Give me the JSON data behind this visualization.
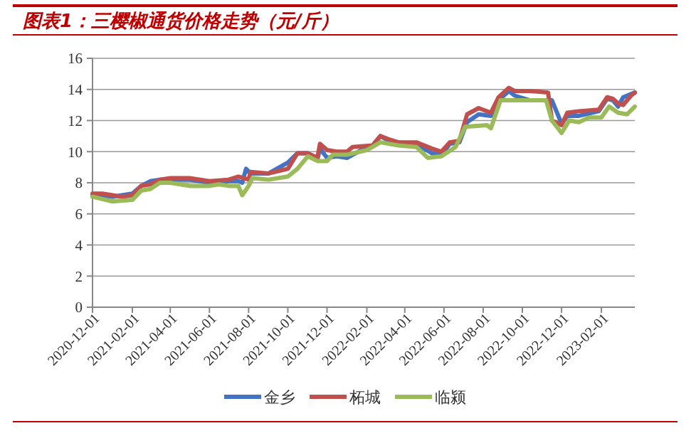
{
  "chart_data": {
    "type": "line",
    "title": "图表1：三樱椒通货价格走势（元/斤）",
    "xlim": [
      "2020-12-01",
      "2023-03-25"
    ],
    "xticks": [
      "2020-12-01",
      "2021-02-01",
      "2021-04-01",
      "2021-06-01",
      "2021-08-01",
      "2021-10-01",
      "2021-12-01",
      "2022-02-01",
      "2022-04-01",
      "2022-06-01",
      "2022-08-01",
      "2022-10-01",
      "2022-12-01",
      "2023-02-01"
    ],
    "ylim": [
      0,
      16
    ],
    "yticks": [
      0,
      2,
      4,
      6,
      8,
      10,
      12,
      14,
      16
    ],
    "grid": "y",
    "legend": "bottom",
    "marker": "none",
    "line_style": "solid",
    "series": [
      {
        "name": "金乡",
        "color": "#4472c4",
        "x": [
          "2020-12-01",
          "2020-12-16",
          "2021-01-01",
          "2021-01-16",
          "2021-02-01",
          "2021-02-15",
          "2021-03-01",
          "2021-03-16",
          "2021-04-01",
          "2021-05-01",
          "2021-06-01",
          "2021-07-01",
          "2021-07-16",
          "2021-07-22",
          "2021-07-28",
          "2021-08-04",
          "2021-09-01",
          "2021-10-01",
          "2021-10-16",
          "2021-11-01",
          "2021-11-16",
          "2021-11-20",
          "2021-12-01",
          "2021-12-16",
          "2022-01-01",
          "2022-01-10",
          "2022-02-01",
          "2022-02-10",
          "2022-02-22",
          "2022-03-07",
          "2022-03-22",
          "2022-04-19",
          "2022-05-13",
          "2022-05-28",
          "2022-06-10",
          "2022-06-25",
          "2022-07-07",
          "2022-07-25",
          "2022-08-13",
          "2022-08-25",
          "2022-09-10",
          "2022-09-19",
          "2022-10-13",
          "2022-11-07",
          "2022-11-16",
          "2022-12-01",
          "2022-12-10",
          "2022-12-28",
          "2023-01-28",
          "2023-02-10",
          "2023-02-19",
          "2023-02-27",
          "2023-03-07",
          "2023-03-19",
          "2023-03-25"
        ],
        "values": [
          7.2,
          7.2,
          7.1,
          7.2,
          7.3,
          7.8,
          8.1,
          8.2,
          8.2,
          8.2,
          8.0,
          8.1,
          8.1,
          8.0,
          8.9,
          8.6,
          8.6,
          9.3,
          9.9,
          9.9,
          9.5,
          10.2,
          9.6,
          9.7,
          9.6,
          9.8,
          10.3,
          10.4,
          11.0,
          10.7,
          10.6,
          10.5,
          9.9,
          9.8,
          10.5,
          10.6,
          11.9,
          12.4,
          12.3,
          13.3,
          13.9,
          13.6,
          13.3,
          13.3,
          13.3,
          11.8,
          12.3,
          12.3,
          12.6,
          13.4,
          13.3,
          12.9,
          13.5,
          13.7,
          13.8
        ]
      },
      {
        "name": "柘城",
        "color": "#c0504d",
        "x": [
          "2020-12-01",
          "2020-12-16",
          "2021-01-01",
          "2021-01-16",
          "2021-02-01",
          "2021-02-15",
          "2021-03-01",
          "2021-03-16",
          "2021-04-01",
          "2021-05-01",
          "2021-06-01",
          "2021-07-01",
          "2021-07-16",
          "2021-08-01",
          "2021-08-04",
          "2021-09-01",
          "2021-10-01",
          "2021-10-16",
          "2021-11-01",
          "2021-11-16",
          "2021-11-20",
          "2021-12-01",
          "2021-12-16",
          "2022-01-01",
          "2022-01-10",
          "2022-02-10",
          "2022-02-22",
          "2022-03-07",
          "2022-03-22",
          "2022-04-19",
          "2022-05-13",
          "2022-05-28",
          "2022-06-10",
          "2022-06-25",
          "2022-07-07",
          "2022-07-25",
          "2022-08-13",
          "2022-08-25",
          "2022-09-10",
          "2022-09-19",
          "2022-10-13",
          "2022-11-10",
          "2022-11-16",
          "2022-12-01",
          "2022-12-10",
          "2022-12-28",
          "2023-01-28",
          "2023-02-10",
          "2023-02-19",
          "2023-02-27",
          "2023-03-07",
          "2023-03-19",
          "2023-03-25"
        ],
        "values": [
          7.3,
          7.3,
          7.2,
          7.1,
          7.2,
          7.8,
          7.9,
          8.2,
          8.3,
          8.3,
          8.1,
          8.2,
          8.4,
          8.2,
          8.7,
          8.6,
          8.9,
          9.9,
          9.9,
          9.6,
          10.5,
          10.1,
          10.0,
          10.0,
          10.3,
          10.4,
          11.0,
          10.8,
          10.6,
          10.6,
          10.2,
          10.0,
          10.6,
          10.7,
          12.4,
          12.8,
          12.5,
          13.5,
          14.1,
          13.9,
          13.9,
          13.8,
          12.0,
          11.7,
          12.5,
          12.6,
          12.7,
          13.5,
          13.4,
          13.1,
          13.0,
          13.6,
          13.8
        ]
      },
      {
        "name": "临颍",
        "color": "#9bbb59",
        "x": [
          "2020-12-01",
          "2021-01-01",
          "2021-02-01",
          "2021-02-15",
          "2021-03-01",
          "2021-03-16",
          "2021-04-01",
          "2021-05-01",
          "2021-06-01",
          "2021-06-16",
          "2021-07-01",
          "2021-07-16",
          "2021-07-22",
          "2021-08-01",
          "2021-08-07",
          "2021-09-01",
          "2021-10-01",
          "2021-10-16",
          "2021-11-01",
          "2021-11-16",
          "2021-12-01",
          "2021-12-10",
          "2022-01-01",
          "2022-02-01",
          "2022-02-22",
          "2022-03-22",
          "2022-04-19",
          "2022-05-07",
          "2022-05-28",
          "2022-06-19",
          "2022-07-04",
          "2022-08-07",
          "2022-08-13",
          "2022-08-28",
          "2022-11-07",
          "2022-11-16",
          "2022-12-01",
          "2022-12-13",
          "2022-12-28",
          "2023-01-13",
          "2023-02-01",
          "2023-02-13",
          "2023-02-27",
          "2023-03-13",
          "2023-03-25"
        ],
        "values": [
          7.1,
          6.8,
          6.9,
          7.5,
          7.6,
          8.0,
          8.0,
          7.8,
          7.8,
          7.9,
          7.8,
          7.8,
          7.2,
          7.8,
          8.3,
          8.2,
          8.4,
          8.9,
          9.7,
          9.4,
          9.4,
          9.8,
          9.8,
          10.1,
          10.6,
          10.4,
          10.3,
          9.6,
          9.7,
          10.3,
          11.6,
          11.7,
          11.5,
          13.3,
          13.3,
          12.0,
          11.2,
          12.0,
          11.9,
          12.2,
          12.2,
          12.9,
          12.5,
          12.4,
          12.9
        ]
      }
    ]
  }
}
